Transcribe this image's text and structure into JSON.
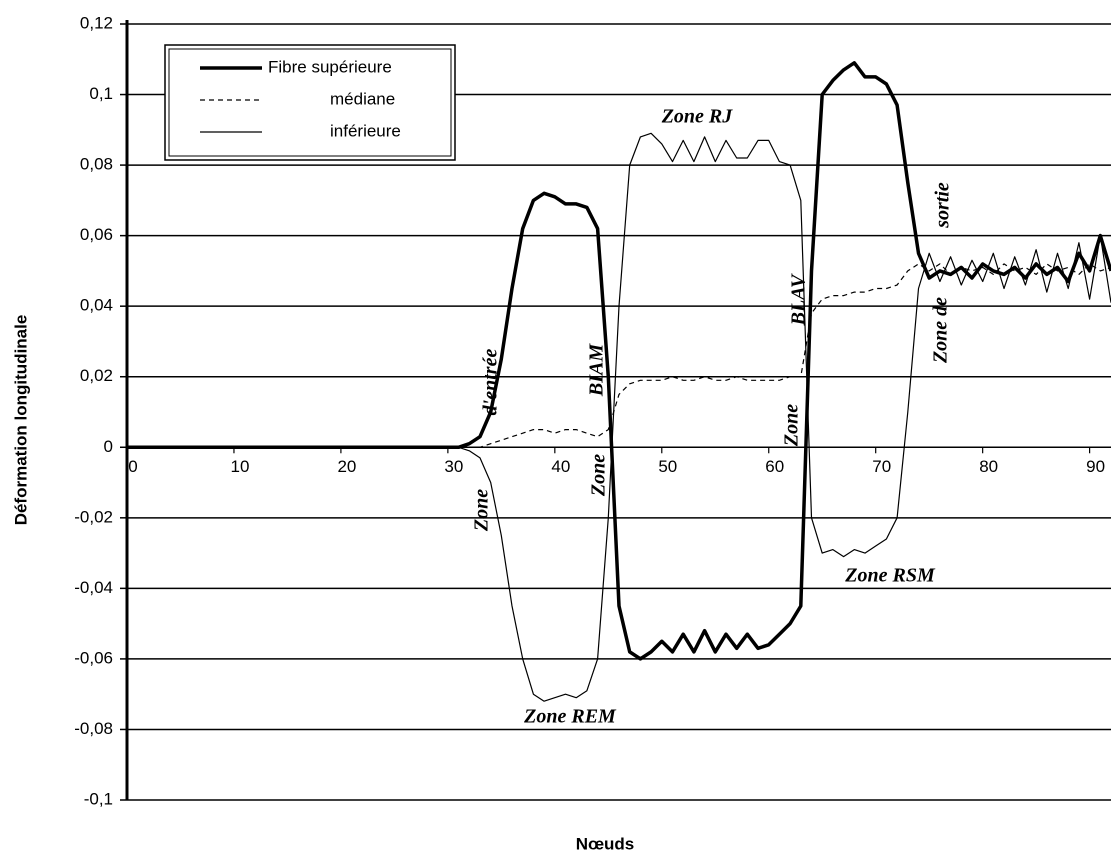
{
  "chart_data": {
    "type": "line",
    "x_label": "Nœuds",
    "y_label": "Déformation longitudinale",
    "x": [
      0,
      1,
      2,
      3,
      4,
      5,
      6,
      7,
      8,
      9,
      10,
      11,
      12,
      13,
      14,
      15,
      16,
      17,
      18,
      19,
      20,
      21,
      22,
      23,
      24,
      25,
      26,
      27,
      28,
      29,
      30,
      31,
      32,
      33,
      34,
      35,
      36,
      37,
      38,
      39,
      40,
      41,
      42,
      43,
      44,
      45,
      46,
      47,
      48,
      49,
      50,
      51,
      52,
      53,
      54,
      55,
      56,
      57,
      58,
      59,
      60,
      61,
      62,
      63,
      64,
      65,
      66,
      67,
      68,
      69,
      70,
      71,
      72,
      73,
      74,
      75,
      76,
      77,
      78,
      79,
      80,
      81,
      82,
      83,
      84,
      85,
      86,
      87,
      88,
      89,
      90,
      91,
      92
    ],
    "series": [
      {
        "name": "Fibre supérieure",
        "color": "#000000",
        "line_width": 3.5,
        "dashed": false,
        "values": [
          0,
          0,
          0,
          0,
          0,
          0,
          0,
          0,
          0,
          0,
          0,
          0,
          0,
          0,
          0,
          0,
          0,
          0,
          0,
          0,
          0,
          0,
          0,
          0,
          0,
          0,
          0,
          0,
          0,
          0,
          0,
          0,
          0.001,
          0.003,
          0.01,
          0.025,
          0.045,
          0.062,
          0.07,
          0.072,
          0.071,
          0.069,
          0.069,
          0.068,
          0.062,
          0.02,
          -0.045,
          -0.058,
          -0.06,
          -0.058,
          -0.055,
          -0.058,
          -0.053,
          -0.058,
          -0.052,
          -0.058,
          -0.053,
          -0.057,
          -0.053,
          -0.057,
          -0.056,
          -0.053,
          -0.05,
          -0.045,
          0.05,
          0.1,
          0.104,
          0.107,
          0.109,
          0.105,
          0.105,
          0.103,
          0.097,
          0.075,
          0.055,
          0.048,
          0.05,
          0.049,
          0.051,
          0.048,
          0.052,
          0.05,
          0.049,
          0.051,
          0.048,
          0.052,
          0.049,
          0.051,
          0.047,
          0.055,
          0.05,
          0.06,
          0.05
        ]
      },
      {
        "name": "médiane",
        "color": "#000000",
        "line_width": 1.2,
        "dashed": true,
        "values": [
          0,
          0,
          0,
          0,
          0,
          0,
          0,
          0,
          0,
          0,
          0,
          0,
          0,
          0,
          0,
          0,
          0,
          0,
          0,
          0,
          0,
          0,
          0,
          0,
          0,
          0,
          0,
          0,
          0,
          0,
          0,
          0,
          0,
          0,
          0.001,
          0.002,
          0.003,
          0.004,
          0.005,
          0.005,
          0.004,
          0.005,
          0.005,
          0.004,
          0.003,
          0.005,
          0.015,
          0.018,
          0.019,
          0.019,
          0.019,
          0.02,
          0.019,
          0.019,
          0.02,
          0.019,
          0.019,
          0.02,
          0.019,
          0.019,
          0.019,
          0.019,
          0.02,
          0.02,
          0.038,
          0.042,
          0.043,
          0.043,
          0.044,
          0.044,
          0.045,
          0.045,
          0.046,
          0.05,
          0.052,
          0.05,
          0.052,
          0.049,
          0.051,
          0.05,
          0.051,
          0.049,
          0.052,
          0.05,
          0.051,
          0.049,
          0.052,
          0.05,
          0.051,
          0.049,
          0.052,
          0.05,
          0.051
        ]
      },
      {
        "name": "inférieure",
        "color": "#000000",
        "line_width": 1.2,
        "dashed": false,
        "values": [
          0,
          0,
          0,
          0,
          0,
          0,
          0,
          0,
          0,
          0,
          0,
          0,
          0,
          0,
          0,
          0,
          0,
          0,
          0,
          0,
          0,
          0,
          0,
          0,
          0,
          0,
          0,
          0,
          0,
          0,
          0,
          0,
          -0.001,
          -0.003,
          -0.01,
          -0.025,
          -0.045,
          -0.06,
          -0.07,
          -0.072,
          -0.071,
          -0.07,
          -0.071,
          -0.069,
          -0.06,
          -0.02,
          0.04,
          0.08,
          0.088,
          0.089,
          0.086,
          0.081,
          0.087,
          0.081,
          0.088,
          0.081,
          0.087,
          0.082,
          0.082,
          0.087,
          0.087,
          0.081,
          0.08,
          0.07,
          -0.02,
          -0.03,
          -0.029,
          -0.031,
          -0.029,
          -0.03,
          -0.028,
          -0.026,
          -0.02,
          0.01,
          0.045,
          0.055,
          0.047,
          0.054,
          0.046,
          0.053,
          0.047,
          0.055,
          0.045,
          0.054,
          0.046,
          0.056,
          0.044,
          0.055,
          0.045,
          0.058,
          0.042,
          0.06,
          0.041
        ]
      }
    ],
    "xlim": [
      0,
      92
    ],
    "xticks": [
      0,
      10,
      20,
      30,
      40,
      50,
      60,
      70,
      80,
      90
    ],
    "ylim": [
      -0.1,
      0.12
    ],
    "yticks": [
      {
        "value": -0.1,
        "label": "-0,1"
      },
      {
        "value": -0.08,
        "label": "-0,08"
      },
      {
        "value": -0.06,
        "label": "-0,06"
      },
      {
        "value": -0.04,
        "label": "-0,04"
      },
      {
        "value": -0.02,
        "label": "-0,02"
      },
      {
        "value": 0,
        "label": "0"
      },
      {
        "value": 0.02,
        "label": "0,02"
      },
      {
        "value": 0.04,
        "label": "0,04"
      },
      {
        "value": 0.06,
        "label": "0,06"
      },
      {
        "value": 0.08,
        "label": "0,08"
      },
      {
        "value": 0.1,
        "label": "0,1"
      },
      {
        "value": 0.12,
        "label": "0,12"
      }
    ],
    "grid": true,
    "legend": "top-left",
    "annotations": [
      "Zone",
      "d'entrée",
      "Zone",
      "BIAM",
      "Zone",
      "BLAV",
      "Zone de",
      "sortie",
      "Zone RJ",
      "Zone REM",
      "Zone RSM"
    ]
  }
}
